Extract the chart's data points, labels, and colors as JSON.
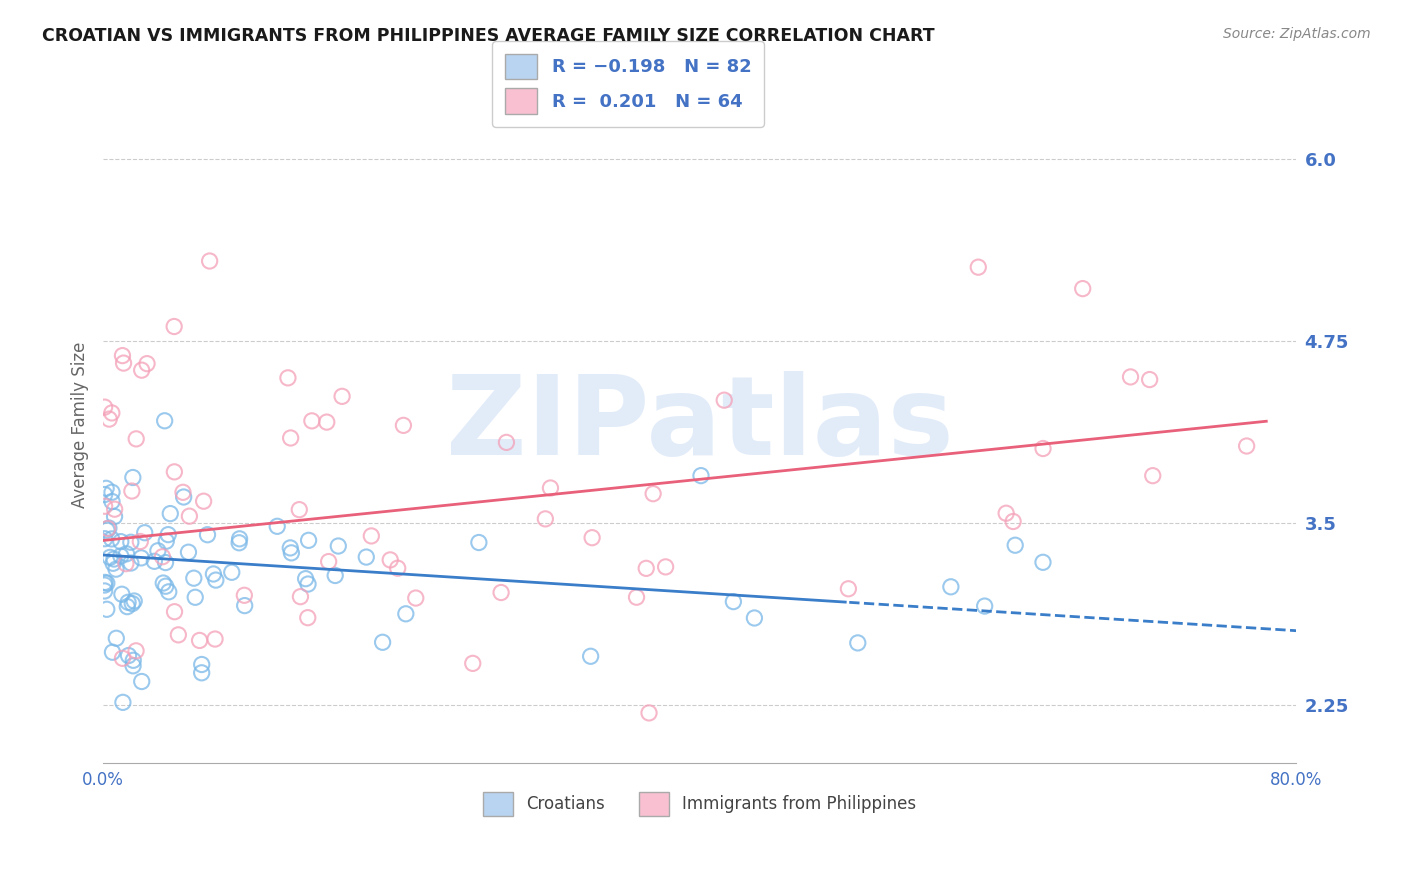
{
  "title": "CROATIAN VS IMMIGRANTS FROM PHILIPPINES AVERAGE FAMILY SIZE CORRELATION CHART",
  "source": "Source: ZipAtlas.com",
  "ylabel": "Average Family Size",
  "xlim": [
    0.0,
    0.8
  ],
  "ylim": [
    1.85,
    6.5
  ],
  "yticks": [
    2.25,
    3.5,
    4.75,
    6.0
  ],
  "xticks": [
    0.0,
    0.2,
    0.4,
    0.6,
    0.8
  ],
  "xticklabels": [
    "0.0%",
    "",
    "",
    "",
    "80.0%"
  ],
  "croatians": {
    "R": -0.198,
    "N": 82,
    "color": "#7ab8e8",
    "trend_color": "#3a7dc9",
    "label": "Croatians"
  },
  "philippines": {
    "R": 0.201,
    "N": 64,
    "color": "#f4a0b8",
    "trend_color": "#e8607a",
    "label": "Immigrants from Philippines"
  },
  "legend_box_color_croatians": "#b8d4f0",
  "legend_box_color_philippines": "#f8c0d0",
  "background_color": "#ffffff",
  "grid_color": "#cccccc",
  "axis_label_color": "#666666",
  "tick_color": "#4472c4",
  "watermark": "ZIPatlas",
  "watermark_color": "#d0e0f5",
  "trend_split_blue": 0.5
}
